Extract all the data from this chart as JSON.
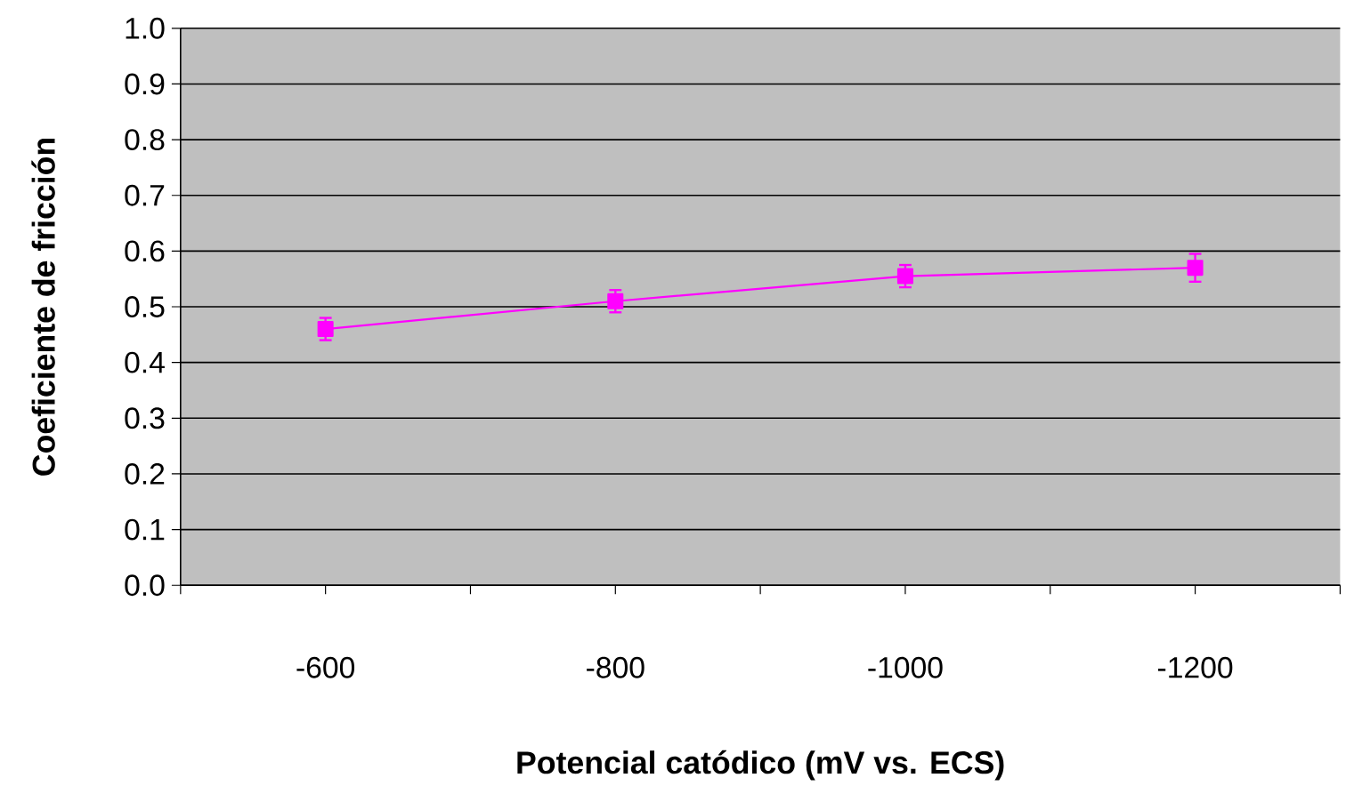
{
  "chart_data": {
    "type": "line",
    "xlabel": "Potencial catódico (mV vs. ECS)",
    "ylabel": "Coeficiente de fricción",
    "x": [
      -600,
      -800,
      -1000,
      -1200
    ],
    "series": [
      {
        "color": "#ff00ff",
        "values": [
          0.46,
          0.51,
          0.555,
          0.57
        ],
        "errors": [
          0.02,
          0.02,
          0.02,
          0.025
        ]
      }
    ],
    "xlim": [
      -500,
      -1300
    ],
    "xticks": [
      {
        "value": -500,
        "label": null
      },
      -600,
      {
        "value": -700,
        "label": null
      },
      -800,
      {
        "value": -900,
        "label": null
      },
      -1000,
      {
        "value": -1100,
        "label": null
      },
      -1200,
      {
        "value": -1300,
        "label": null
      }
    ],
    "ylim": [
      0,
      1.0
    ],
    "yticks": [
      {
        "value": 0,
        "label": "0.0"
      },
      0.1,
      0.2,
      0.3,
      0.4,
      0.5,
      0.6,
      0.7,
      0.8,
      0.9,
      {
        "value": 1.0,
        "label": "1.0"
      }
    ],
    "grid": "y",
    "marker": "square",
    "line_style": "solid"
  }
}
